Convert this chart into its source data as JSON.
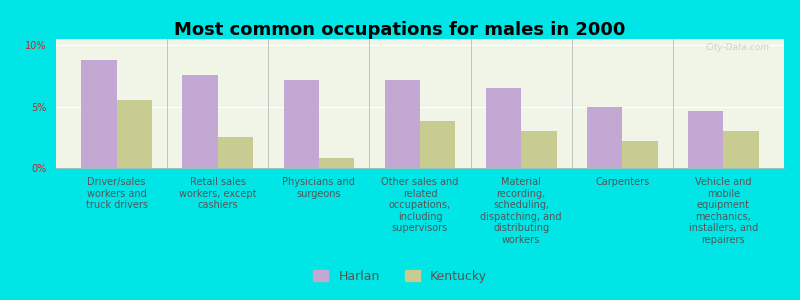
{
  "title": "Most common occupations for males in 2000",
  "categories": [
    "Driver/sales\nworkers and\ntruck drivers",
    "Retail sales\nworkers, except\ncashiers",
    "Physicians and\nsurgeons",
    "Other sales and\nrelated\noccupations,\nincluding\nsupervisors",
    "Material\nrecording,\nscheduling,\ndispatching, and\ndistributing\nworkers",
    "Carpenters",
    "Vehicle and\nmobile\nequipment\nmechanics,\ninstallers, and\nrepairers"
  ],
  "harlan_values": [
    8.8,
    7.6,
    7.2,
    7.2,
    6.5,
    5.0,
    4.6
  ],
  "kentucky_values": [
    5.5,
    2.5,
    0.8,
    3.8,
    3.0,
    2.2,
    3.0
  ],
  "harlan_color": "#c4a8d4",
  "kentucky_color": "#c8cc90",
  "background_color": "#00e5e5",
  "plot_bg_color": "#f0f5e8",
  "ylim": [
    0,
    10.5
  ],
  "yticks": [
    0,
    5,
    10
  ],
  "yticklabels": [
    "0%",
    "5%",
    "10%"
  ],
  "bar_width": 0.35,
  "legend_harlan": "Harlan",
  "legend_kentucky": "Kentucky",
  "title_fontsize": 13,
  "tick_fontsize": 7.0,
  "legend_fontsize": 9,
  "watermark": "City-Data.com"
}
